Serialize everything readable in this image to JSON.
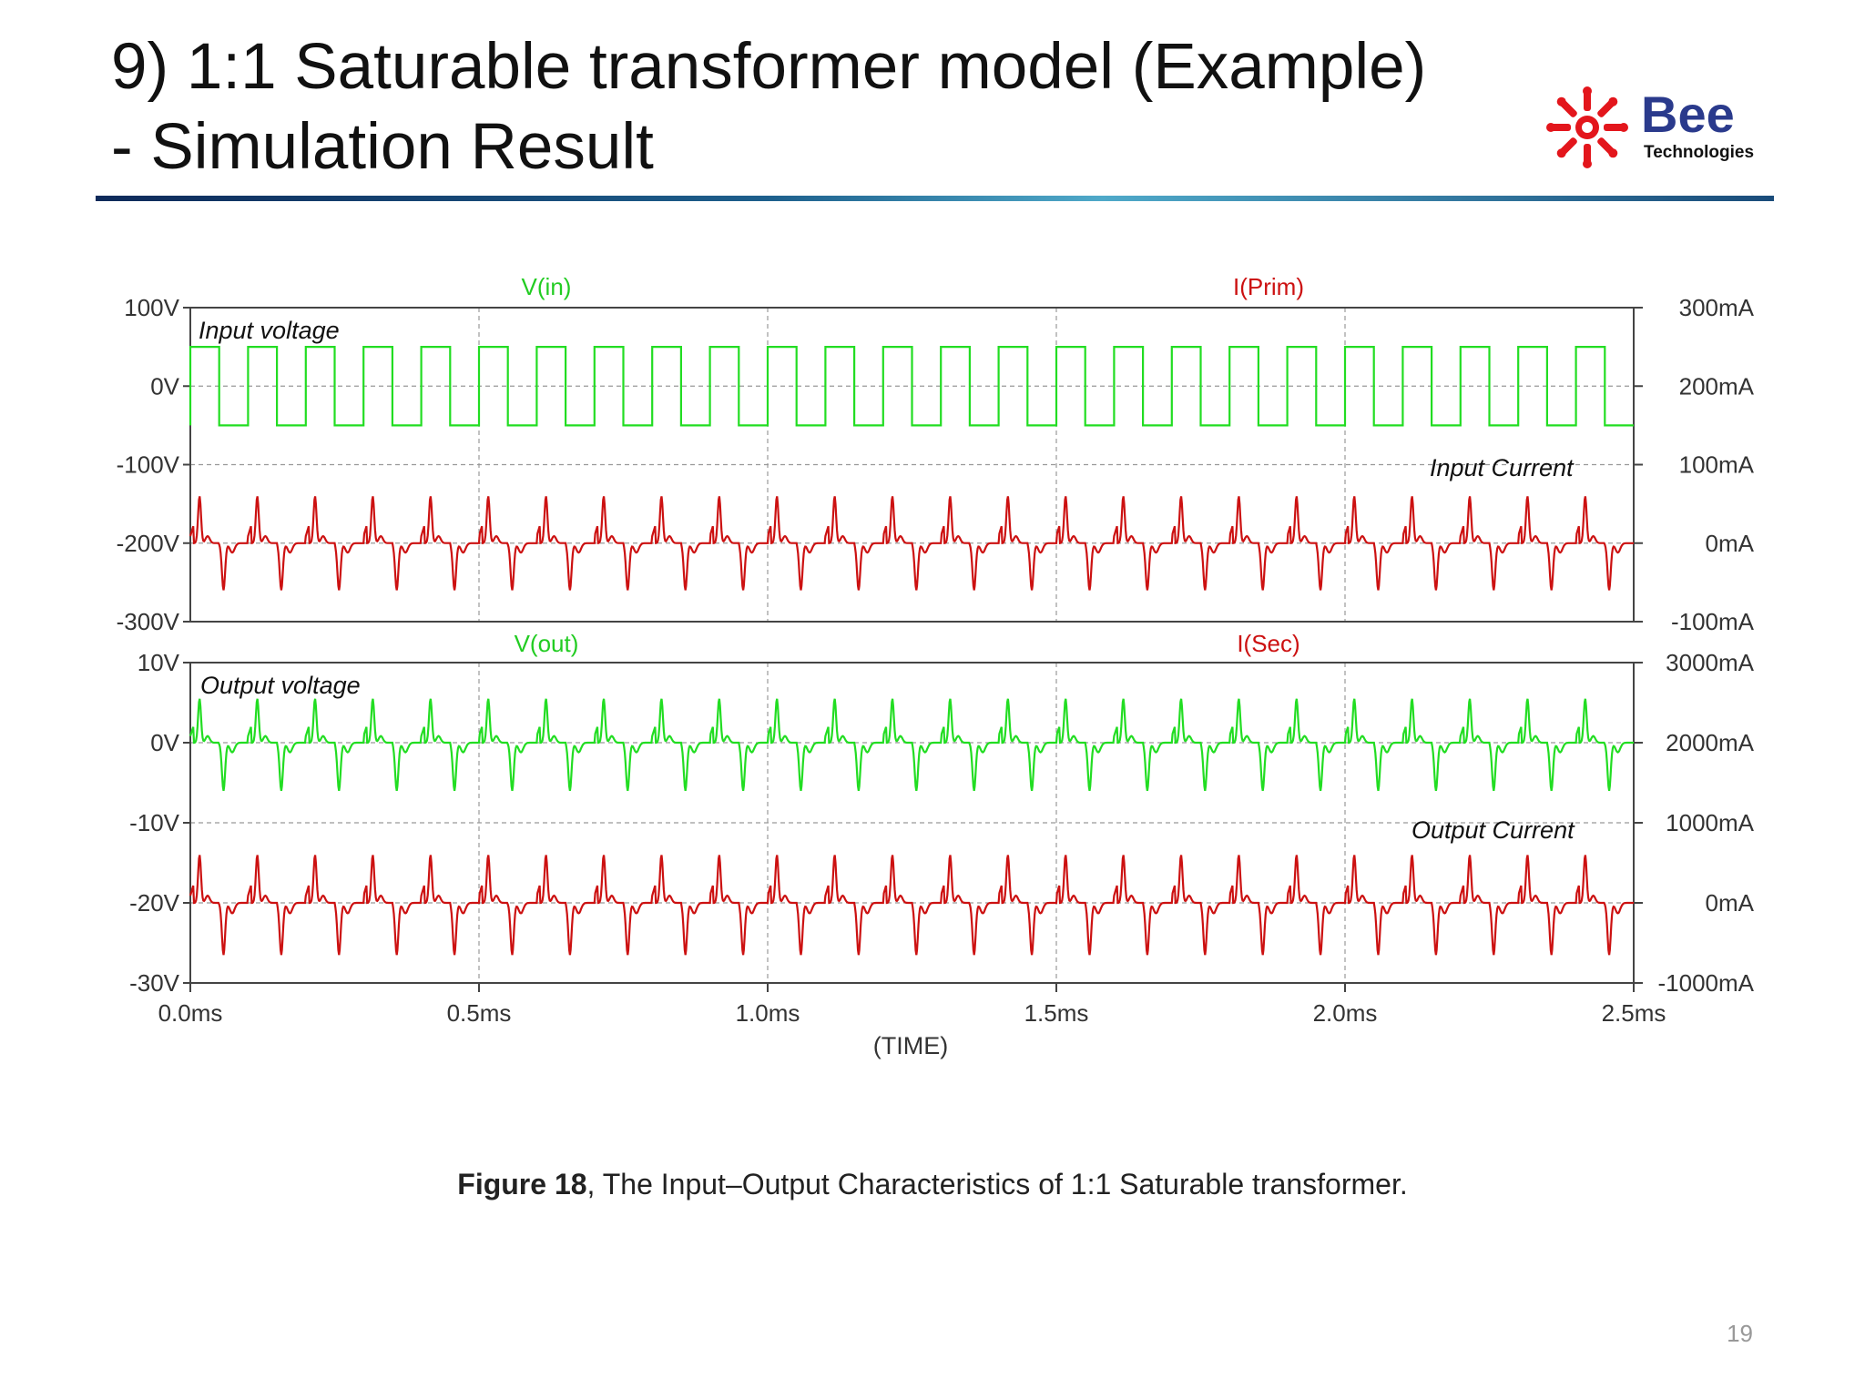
{
  "slide": {
    "title_line1": "9) 1:1 Saturable transformer model (Example)",
    "title_line2": "- Simulation Result",
    "logo_text": "Bee",
    "logo_subtext": "Technologies",
    "caption_bold": "Figure 18",
    "caption_rest": ", The Input–Output Characteristics of 1:1 Saturable transformer.",
    "page_number": "19",
    "colors": {
      "green": "#22dd22",
      "red": "#cc1111",
      "axis": "#444444",
      "logo_red": "#e3161c"
    }
  },
  "chart_data": [
    {
      "type": "line",
      "x_label": "(TIME)",
      "x_range_ms": [
        0,
        2.5
      ],
      "x_ticks": [
        "0.0ms",
        "0.5ms",
        "1.0ms",
        "1.5ms",
        "2.0ms",
        "2.5ms"
      ],
      "left_axis": {
        "range": [
          -300,
          100
        ],
        "unit": "V",
        "ticks": [
          "100V",
          "0V",
          "-100V",
          "-200V",
          "-300V"
        ]
      },
      "right_axis": {
        "range": [
          -100,
          300
        ],
        "unit": "mA",
        "ticks": [
          "300mA",
          "200mA",
          "100mA",
          "0mA",
          "-100mA"
        ]
      },
      "annotations": [
        "Input voltage",
        "Input Current"
      ],
      "series": [
        {
          "name": "V(in)",
          "axis": "left",
          "color": "#22dd22",
          "waveform": "square",
          "period_ms": 0.1,
          "high": 50,
          "low": -50
        },
        {
          "name": "I(Prim)",
          "axis": "right",
          "color": "#cc1111",
          "waveform": "saturating-spike",
          "period_ms": 0.1,
          "peak": 60,
          "trough": -60,
          "baseline": 0
        }
      ],
      "grid": true
    },
    {
      "type": "line",
      "x_label": "(TIME)",
      "x_range_ms": [
        0,
        2.5
      ],
      "x_ticks": [
        "0.0ms",
        "0.5ms",
        "1.0ms",
        "1.5ms",
        "2.0ms",
        "2.5ms"
      ],
      "left_axis": {
        "range": [
          -30,
          10
        ],
        "unit": "V",
        "ticks": [
          "10V",
          "0V",
          "-10V",
          "-20V",
          "-30V"
        ]
      },
      "right_axis": {
        "range": [
          -1000,
          3000
        ],
        "unit": "mA",
        "ticks": [
          "3000mA",
          "2000mA",
          "1000mA",
          "0mA",
          "-1000mA"
        ]
      },
      "annotations": [
        "Output voltage",
        "Output Current"
      ],
      "series": [
        {
          "name": "V(out)",
          "axis": "left",
          "color": "#22dd22",
          "waveform": "saturating-spike",
          "period_ms": 0.1,
          "peak": 5.5,
          "trough": -6,
          "baseline": 0
        },
        {
          "name": "I(Sec)",
          "axis": "right",
          "color": "#cc1111",
          "waveform": "saturating-spike",
          "period_ms": 0.1,
          "peak": 600,
          "trough": -650,
          "baseline": 0
        }
      ],
      "grid": true
    }
  ]
}
